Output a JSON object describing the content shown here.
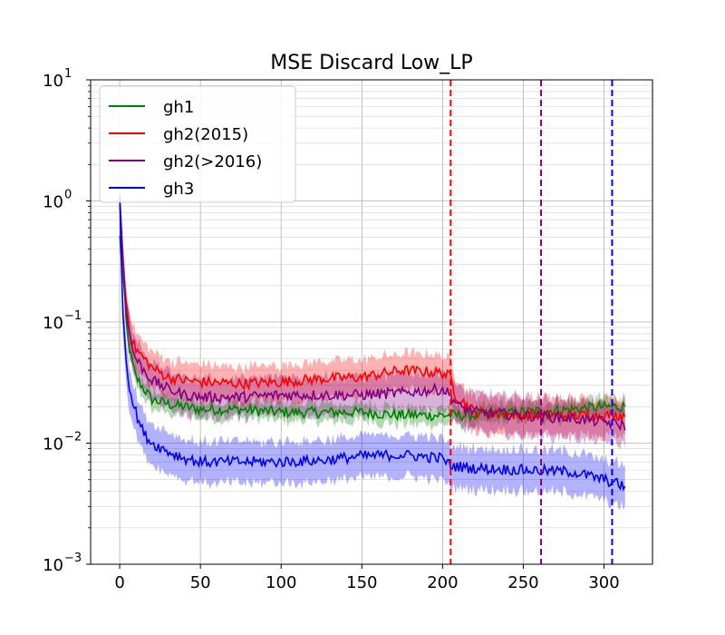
{
  "chart_data": {
    "type": "line",
    "title": "MSE Discard Low_LP",
    "xlabel": "",
    "ylabel": "",
    "xlim": [
      -18,
      330
    ],
    "ylim_log10": [
      -3,
      1
    ],
    "y_scale": "log",
    "grid": "major and minor",
    "legend_position": "top-left",
    "x_ticks": [
      0,
      50,
      100,
      150,
      200,
      250,
      300
    ],
    "x_tick_labels": [
      "0",
      "50",
      "100",
      "150",
      "200",
      "250",
      "300"
    ],
    "y_ticks": [
      {
        "base": "10",
        "exp": "−3",
        "value": 0.001
      },
      {
        "base": "10",
        "exp": "−2",
        "value": 0.01
      },
      {
        "base": "10",
        "exp": "−1",
        "value": 0.1
      },
      {
        "base": "10",
        "exp": "0",
        "value": 1
      },
      {
        "base": "10",
        "exp": "1",
        "value": 10
      }
    ],
    "series": [
      {
        "name": "gh1",
        "color": "#008000",
        "x": [
          0,
          2,
          4,
          6,
          8,
          10,
          15,
          20,
          30,
          40,
          50,
          75,
          100,
          125,
          150,
          175,
          200,
          205,
          220,
          250,
          280,
          300,
          313
        ],
        "y": [
          0.5,
          0.25,
          0.1,
          0.06,
          0.045,
          0.035,
          0.028,
          0.023,
          0.021,
          0.02,
          0.019,
          0.019,
          0.018,
          0.018,
          0.018,
          0.017,
          0.017,
          0.017,
          0.017,
          0.018,
          0.019,
          0.02,
          0.02
        ],
        "band_lower_factor": 0.88,
        "band_upper_factor": 1.12
      },
      {
        "name": "gh2(2015)",
        "color": "#ff0000",
        "x": [
          0,
          2,
          4,
          6,
          8,
          10,
          15,
          20,
          30,
          40,
          50,
          75,
          100,
          125,
          150,
          175,
          200,
          205,
          208,
          220,
          250,
          280,
          300,
          313
        ],
        "y": [
          1.0,
          0.3,
          0.15,
          0.09,
          0.07,
          0.06,
          0.05,
          0.042,
          0.035,
          0.033,
          0.032,
          0.031,
          0.032,
          0.034,
          0.035,
          0.04,
          0.038,
          0.035,
          0.025,
          0.018,
          0.017,
          0.017,
          0.017,
          0.017
        ],
        "band_lower_factor": 0.72,
        "band_upper_factor": 1.32
      },
      {
        "name": "gh2(>2016)",
        "color": "#800080",
        "x": [
          0,
          2,
          4,
          6,
          8,
          10,
          15,
          20,
          30,
          40,
          50,
          75,
          100,
          125,
          150,
          175,
          200,
          205,
          210,
          220,
          250,
          280,
          300,
          313
        ],
        "y": [
          1.0,
          0.35,
          0.13,
          0.08,
          0.06,
          0.05,
          0.04,
          0.033,
          0.028,
          0.025,
          0.024,
          0.024,
          0.025,
          0.025,
          0.025,
          0.026,
          0.028,
          0.025,
          0.02,
          0.018,
          0.017,
          0.016,
          0.015,
          0.014
        ],
        "band_lower_factor": 0.72,
        "band_upper_factor": 1.35
      },
      {
        "name": "gh3",
        "color": "#0000ff",
        "x": [
          0,
          2,
          4,
          6,
          8,
          10,
          12,
          15,
          20,
          30,
          40,
          50,
          75,
          100,
          125,
          150,
          175,
          200,
          205,
          220,
          250,
          280,
          300,
          313
        ],
        "y": [
          1.0,
          0.12,
          0.05,
          0.03,
          0.022,
          0.018,
          0.015,
          0.012,
          0.01,
          0.0085,
          0.0075,
          0.007,
          0.007,
          0.007,
          0.0072,
          0.0078,
          0.008,
          0.0075,
          0.0065,
          0.0062,
          0.006,
          0.0058,
          0.005,
          0.0044
        ],
        "band_lower_factor": 0.7,
        "band_upper_factor": 1.4
      }
    ],
    "vlines": [
      {
        "x": 205,
        "color": "#ff0000",
        "style": "dashed"
      },
      {
        "x": 261,
        "color": "#800080",
        "style": "dashed"
      },
      {
        "x": 305,
        "color": "#0000ff",
        "style": "dashed"
      }
    ]
  }
}
